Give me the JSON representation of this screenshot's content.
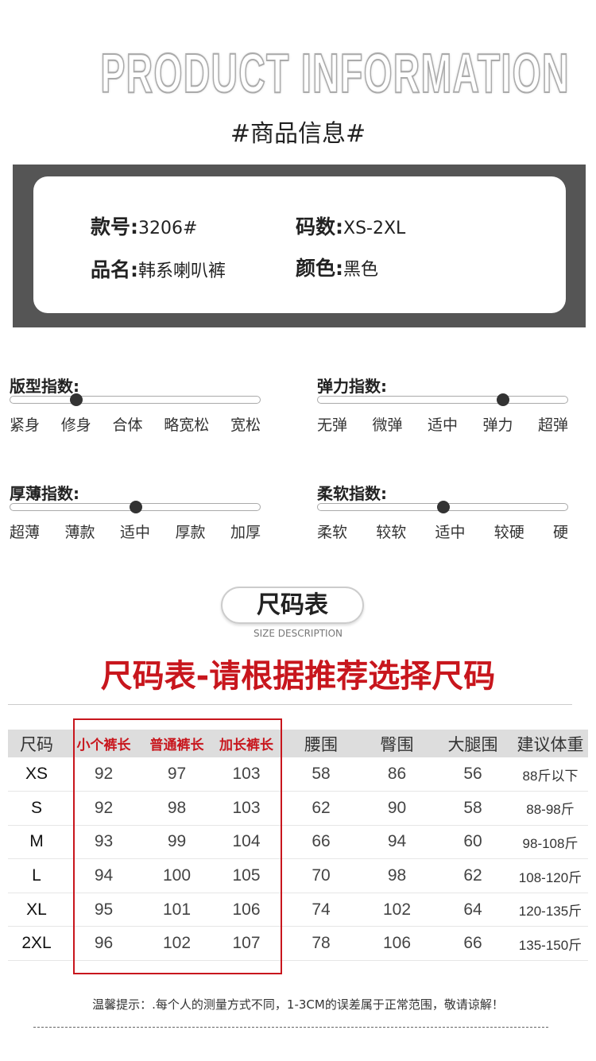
{
  "header": {
    "en_title": "PRODUCT INFORMATION",
    "cn_title": "#商品信息#"
  },
  "info": {
    "style_no": {
      "label": "款号:",
      "value": "3206#"
    },
    "sizes": {
      "label": "码数:",
      "value": "XS-2XL"
    },
    "name": {
      "label": "品名:",
      "value": "韩系喇叭裤"
    },
    "color": {
      "label": "颜色:",
      "value": "黑色"
    }
  },
  "indices": [
    {
      "title": "版型指数:",
      "options": [
        "紧身",
        "修身",
        "合体",
        "略宽松",
        "宽松"
      ],
      "selected_index": 1
    },
    {
      "title": "弹力指数:",
      "options": [
        "无弹",
        "微弹",
        "适中",
        "弹力",
        "超弹"
      ],
      "selected_index": 3
    },
    {
      "title": "厚薄指数:",
      "options": [
        "超薄",
        "薄款",
        "适中",
        "厚款",
        "加厚"
      ],
      "selected_index": 2
    },
    {
      "title": "柔软指数:",
      "options": [
        "柔软",
        "较软",
        "适中",
        "较硬",
        "硬"
      ],
      "selected_index": 2
    }
  ],
  "size_section": {
    "pill": "尺码表",
    "sub": "SIZE DESCRIPTION",
    "heading": "尺码表-请根据推荐选择尺码"
  },
  "table": {
    "headers": [
      "尺码",
      "小个裤长",
      "普通裤长",
      "加长裤长",
      "腰围",
      "臀围",
      "大腿围",
      "建议体重"
    ],
    "rows": [
      [
        "XS",
        "92",
        "97",
        "103",
        "58",
        "86",
        "56",
        "88斤以下"
      ],
      [
        "S",
        "92",
        "98",
        "103",
        "62",
        "90",
        "58",
        "88-98斤"
      ],
      [
        "M",
        "93",
        "99",
        "104",
        "66",
        "94",
        "60",
        "98-108斤"
      ],
      [
        "L",
        "94",
        "100",
        "105",
        "70",
        "98",
        "62",
        "108-120斤"
      ],
      [
        "XL",
        "95",
        "101",
        "106",
        "74",
        "102",
        "64",
        "120-135斤"
      ],
      [
        "2XL",
        "96",
        "102",
        "107",
        "78",
        "106",
        "66",
        "135-150斤"
      ]
    ]
  },
  "note": "温馨提示：.每个人的测量方式不同，1-3CM的误差属于正常范围，敬请谅解！",
  "colors": {
    "accent": "#c8161d",
    "box": "#555555"
  }
}
